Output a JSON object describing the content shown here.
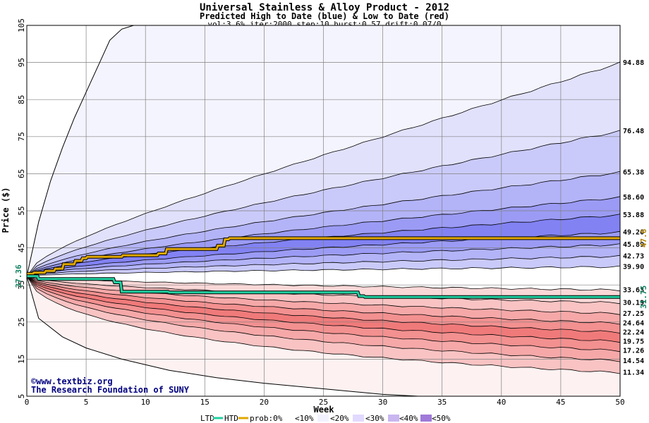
{
  "chart_data": {
    "type": "area",
    "title": "Universal Stainless & Alloy Product - 2012",
    "subtitle": "Predicted High to Date (blue) &  Low to Date (red)",
    "params": "vol:3.6% iter:2000 step:10 hurst:0.57 drift:0.07/0",
    "xlabel": "Week",
    "ylabel": "Price ($)",
    "xlim": [
      0,
      50
    ],
    "ylim": [
      5,
      105
    ],
    "x_ticks": [
      "0",
      "5",
      "10",
      "15",
      "20",
      "25",
      "30",
      "35",
      "40",
      "45",
      "50"
    ],
    "y_ticks": [
      "5",
      "15",
      "25",
      "35",
      "45",
      "55",
      "65",
      "75",
      "85",
      "95",
      "105"
    ],
    "start_price": 37.36,
    "start_label": "37.36",
    "grid": true,
    "high_percentiles": [
      {
        "label": "94.88",
        "end": 94.88
      },
      {
        "label": "76.48",
        "end": 76.48
      },
      {
        "label": "65.38",
        "end": 65.38
      },
      {
        "label": "58.60",
        "end": 58.6
      },
      {
        "label": "53.88",
        "end": 53.88
      },
      {
        "label": "49.20",
        "end": 49.2
      },
      {
        "label": "45.89",
        "end": 45.89
      },
      {
        "label": "42.73",
        "end": 42.73
      },
      {
        "label": "39.90",
        "end": 39.9
      }
    ],
    "low_percentiles": [
      {
        "label": "33.63",
        "end": 33.63
      },
      {
        "label": "30.19",
        "end": 30.19
      },
      {
        "label": "27.25",
        "end": 27.25
      },
      {
        "label": "24.64",
        "end": 24.64
      },
      {
        "label": "22.24",
        "end": 22.24
      },
      {
        "label": "19.75",
        "end": 19.75
      },
      {
        "label": "17.26",
        "end": 17.26
      },
      {
        "label": "14.54",
        "end": 14.54
      },
      {
        "label": "11.34",
        "end": 11.34
      }
    ],
    "outer_high": {
      "points": [
        [
          0,
          37.36
        ],
        [
          1,
          52
        ],
        [
          2,
          63
        ],
        [
          3,
          72
        ],
        [
          4,
          80
        ],
        [
          5,
          87
        ],
        [
          6,
          94
        ],
        [
          7,
          101
        ],
        [
          8,
          104
        ],
        [
          9,
          105
        ]
      ]
    },
    "outer_low": {
      "points": [
        [
          0,
          37.36
        ],
        [
          1,
          26
        ],
        [
          3,
          21
        ],
        [
          5,
          18
        ],
        [
          8,
          15
        ],
        [
          12,
          12
        ],
        [
          16,
          10
        ],
        [
          20,
          8.5
        ],
        [
          25,
          7
        ],
        [
          30,
          5.5
        ],
        [
          33,
          5
        ]
      ]
    },
    "htd_line": {
      "name": "HTD",
      "color": "#e0a800",
      "end_value": 47.6,
      "end_label": "47.6",
      "points": [
        [
          0,
          38
        ],
        [
          0.5,
          38
        ],
        [
          0.6,
          38.3
        ],
        [
          1.5,
          38.3
        ],
        [
          1.6,
          38.8
        ],
        [
          2.3,
          38.8
        ],
        [
          2.4,
          39.4
        ],
        [
          3.0,
          39.4
        ],
        [
          3.1,
          40.6
        ],
        [
          4.0,
          40.6
        ],
        [
          4.1,
          41.5
        ],
        [
          4.6,
          41.5
        ],
        [
          4.7,
          42.2
        ],
        [
          5.0,
          42.2
        ],
        [
          5.1,
          42.6
        ],
        [
          8.0,
          42.6
        ],
        [
          8.1,
          43.0
        ],
        [
          11.0,
          43.0
        ],
        [
          11.1,
          43.5
        ],
        [
          11.7,
          43.5
        ],
        [
          11.8,
          44.7
        ],
        [
          16.0,
          44.7
        ],
        [
          16.1,
          45.6
        ],
        [
          16.6,
          45.6
        ],
        [
          16.7,
          47.3
        ],
        [
          17.0,
          47.3
        ],
        [
          17.1,
          47.6
        ],
        [
          50,
          47.6
        ]
      ]
    },
    "ltd_line": {
      "name": "LTD",
      "color": "#20d0a0",
      "end_value": 31.75,
      "end_label": "31.75",
      "points": [
        [
          0,
          37.36
        ],
        [
          0.9,
          37.36
        ],
        [
          1.0,
          36.6
        ],
        [
          7.3,
          36.6
        ],
        [
          7.4,
          35.7
        ],
        [
          7.9,
          35.7
        ],
        [
          8.0,
          33.2
        ],
        [
          11.9,
          33.2
        ],
        [
          12.0,
          33.0
        ],
        [
          27.9,
          33.0
        ],
        [
          28.0,
          32.0
        ],
        [
          28.4,
          32.0
        ],
        [
          28.5,
          31.75
        ],
        [
          50,
          31.75
        ]
      ]
    },
    "legend": {
      "ltd": "LTD",
      "htd": "HTD",
      "prob_label": "prob:0%",
      "buckets": [
        "<10%",
        "<20%",
        "<30%",
        "<40%",
        "<50%"
      ]
    },
    "credits": [
      "©www.textbiz.org",
      "The Research Foundation of SUNY"
    ]
  },
  "colors": {
    "blue_bands": [
      "#f4f4fe",
      "#e1e1fc",
      "#cacafa",
      "#b3b3f8",
      "#9b9bf5",
      "#8282f3",
      "#9b9bf5",
      "#b3b3f8",
      "#cacafa"
    ],
    "red_bands": [
      "#fdf1f1",
      "#fbd8d8",
      "#f9c3c3",
      "#f6a8a8",
      "#f39090",
      "#f07a7a",
      "#f39090",
      "#f6a8a8",
      "#f9c3c3"
    ],
    "legend_swatches": [
      "#ffffff",
      "#f2f2ff",
      "#e2d9ff",
      "#c9b6f0",
      "#b79ae6",
      "#a07ad8"
    ],
    "grid": "#808080"
  }
}
